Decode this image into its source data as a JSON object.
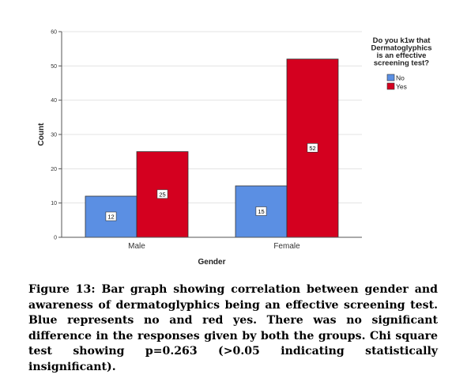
{
  "chart_data": {
    "type": "bar",
    "categories": [
      "Male",
      "Female"
    ],
    "series": [
      {
        "name": "No",
        "values": [
          12,
          15
        ],
        "color": "#5b8fe3"
      },
      {
        "name": "Yes",
        "values": [
          25,
          52
        ],
        "color": "#d4001f"
      }
    ],
    "xlabel": "Gender",
    "ylabel": "Count",
    "ylim": [
      0,
      60
    ],
    "yticks": [
      0,
      10,
      20,
      30,
      40,
      50,
      60
    ],
    "grid": true,
    "legend": {
      "title_lines": [
        "Do you k1w that",
        "Dermatoglyphics",
        "is an effective",
        "screening test?"
      ],
      "placement": "top-right"
    },
    "data_labels": true
  },
  "caption": "Figure 13: Bar graph showing correlation between gender and awareness of dermatoglyphics being an effective screening test. Blue represents no and red yes. There was no significant difference in the responses given by both the groups. Chi square test showing p=0.263 (>0.05 indicating statistically insignificant)."
}
